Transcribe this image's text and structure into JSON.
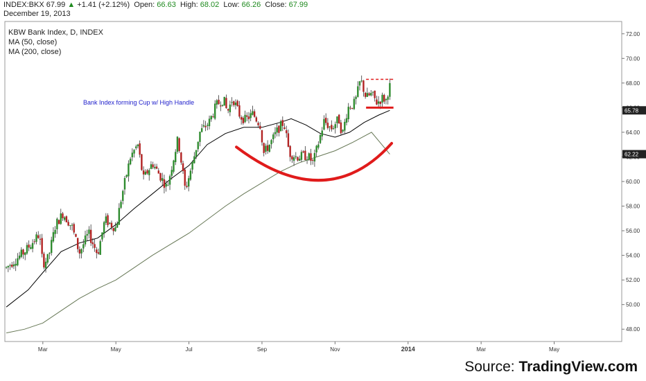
{
  "header": {
    "symbol": "INDEX:BKX",
    "last": "67.99",
    "change": "+1.41 (+2.12%)",
    "open_label": "Open:",
    "open": "66.63",
    "high_label": "High:",
    "high": "68.02",
    "low_label": "Low:",
    "low": "66.26",
    "close_label": "Close:",
    "close": "67.99",
    "date": "December 19, 2013"
  },
  "legend": {
    "title": "KBW Bank Index, D, INDEX",
    "ma1": "MA (50, close)",
    "ma2": "MA (200, close)"
  },
  "annotation": "Bank Index forming Cup w/ High Handle",
  "source_prefix": "Source: ",
  "source_name": "TradingView.com",
  "chart_data": {
    "type": "candlestick",
    "title": "KBW Bank Index, D, INDEX",
    "ylim": [
      47,
      73
    ],
    "y_ticks": [
      "48.00",
      "50.00",
      "52.00",
      "54.00",
      "56.00",
      "58.00",
      "60.00",
      "62.00",
      "64.00",
      "66.00",
      "68.00",
      "70.00",
      "72.00"
    ],
    "y_tick_values": [
      48,
      50,
      52,
      54,
      56,
      58,
      60,
      62,
      64,
      66,
      68,
      70,
      72
    ],
    "x_ticks": [
      "Mar",
      "May",
      "Jul",
      "Sep",
      "Nov",
      "2014",
      "Mar",
      "May"
    ],
    "x_tick_months": [
      2,
      4,
      6,
      8,
      10,
      12,
      14,
      16
    ],
    "xlim_months": [
      0.96,
      17.85
    ],
    "price_labels": [
      {
        "text": "65.78",
        "value": 65.78
      },
      {
        "text": "62.22",
        "value": 62.22
      }
    ],
    "price_path": [
      [
        1.0,
        53.0
      ],
      [
        1.5,
        54.3
      ],
      [
        1.9,
        55.7
      ],
      [
        2.0,
        53.3
      ],
      [
        2.15,
        53.8
      ],
      [
        2.35,
        56.5
      ],
      [
        2.55,
        57.4
      ],
      [
        2.8,
        56.3
      ],
      [
        3.0,
        54.2
      ],
      [
        3.25,
        55.8
      ],
      [
        3.5,
        54.1
      ],
      [
        3.7,
        56.9
      ],
      [
        4.0,
        56.2
      ],
      [
        4.15,
        58.7
      ],
      [
        4.4,
        62.0
      ],
      [
        4.6,
        63.0
      ],
      [
        4.75,
        60.2
      ],
      [
        5.0,
        61.5
      ],
      [
        5.4,
        59.5
      ],
      [
        5.7,
        63.5
      ],
      [
        5.9,
        59.3
      ],
      [
        6.1,
        61.5
      ],
      [
        6.3,
        64.0
      ],
      [
        6.55,
        64.8
      ],
      [
        6.75,
        66.2
      ],
      [
        6.95,
        66.7
      ],
      [
        7.05,
        65.6
      ],
      [
        7.2,
        66.8
      ],
      [
        7.4,
        65.3
      ],
      [
        7.55,
        65.0
      ],
      [
        7.75,
        65.5
      ],
      [
        7.95,
        64.6
      ],
      [
        8.05,
        62.3
      ],
      [
        8.25,
        63.2
      ],
      [
        8.45,
        64.3
      ],
      [
        8.6,
        64.8
      ],
      [
        8.75,
        62.3
      ],
      [
        8.95,
        62.0
      ],
      [
        9.25,
        62.1
      ],
      [
        9.4,
        61.5
      ],
      [
        9.55,
        63.2
      ],
      [
        9.7,
        64.9
      ],
      [
        9.9,
        64.3
      ],
      [
        10.1,
        65.1
      ],
      [
        10.2,
        63.8
      ],
      [
        10.35,
        66.0
      ],
      [
        10.55,
        66.4
      ],
      [
        10.7,
        68.3
      ],
      [
        10.85,
        66.8
      ],
      [
        11.0,
        67.1
      ],
      [
        11.15,
        66.4
      ],
      [
        11.3,
        66.8
      ],
      [
        11.4,
        66.6
      ],
      [
        11.5,
        67.99
      ]
    ],
    "series": [
      {
        "name": "MA (50, close)",
        "color": "#000000",
        "points": [
          [
            1.0,
            49.8
          ],
          [
            1.6,
            51.2
          ],
          [
            2.0,
            52.6
          ],
          [
            2.5,
            54.3
          ],
          [
            3.0,
            55.0
          ],
          [
            3.5,
            55.4
          ],
          [
            4.0,
            56.5
          ],
          [
            4.5,
            57.8
          ],
          [
            5.0,
            59.0
          ],
          [
            5.5,
            60.2
          ],
          [
            6.0,
            61.3
          ],
          [
            6.5,
            63.0
          ],
          [
            7.0,
            63.9
          ],
          [
            7.5,
            64.4
          ],
          [
            8.0,
            64.4
          ],
          [
            8.5,
            64.8
          ],
          [
            8.8,
            65.1
          ],
          [
            9.2,
            64.6
          ],
          [
            9.6,
            63.9
          ],
          [
            10.0,
            63.6
          ],
          [
            10.4,
            64.0
          ],
          [
            10.8,
            64.8
          ],
          [
            11.2,
            65.4
          ],
          [
            11.5,
            65.78
          ]
        ]
      },
      {
        "name": "MA (200, close)",
        "color": "#667755",
        "points": [
          [
            1.0,
            47.7
          ],
          [
            1.5,
            48.0
          ],
          [
            2.0,
            48.5
          ],
          [
            2.5,
            49.5
          ],
          [
            3.0,
            50.5
          ],
          [
            3.5,
            51.3
          ],
          [
            4.0,
            52.0
          ],
          [
            4.5,
            53.0
          ],
          [
            5.0,
            54.0
          ],
          [
            5.5,
            54.9
          ],
          [
            6.0,
            55.8
          ],
          [
            6.5,
            56.9
          ],
          [
            7.0,
            58.0
          ],
          [
            7.5,
            59.0
          ],
          [
            8.0,
            59.9
          ],
          [
            8.5,
            60.8
          ],
          [
            9.0,
            61.5
          ],
          [
            9.5,
            62.0
          ],
          [
            10.0,
            62.5
          ],
          [
            10.5,
            63.2
          ],
          [
            11.0,
            64.0
          ],
          [
            11.5,
            62.22
          ]
        ]
      }
    ],
    "overlays": {
      "cup_arc": {
        "color": "#e01b1b",
        "from": [
          7.3,
          62.8
        ],
        "bottom": [
          9.6,
          60.1
        ],
        "to": [
          11.55,
          63.1
        ]
      },
      "handle_support": {
        "color": "#e01b1b",
        "style": "solid",
        "x": [
          10.85,
          11.6
        ],
        "y": 66.0
      },
      "handle_resistance": {
        "color": "#e01b1b",
        "style": "dashed",
        "x": [
          10.85,
          11.6
        ],
        "y": 68.3
      }
    },
    "colors": {
      "up": "#2e8b2e",
      "down": "#b22222",
      "wick": "#333333",
      "grid": "#999999"
    }
  }
}
